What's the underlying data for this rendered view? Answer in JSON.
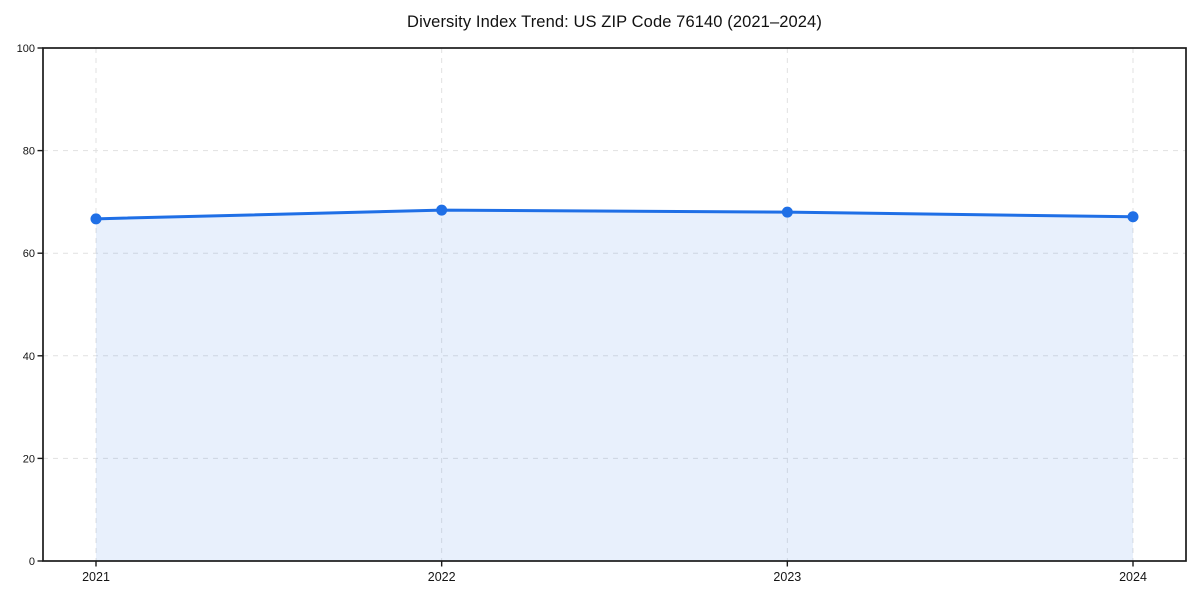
{
  "chart_data": {
    "type": "area",
    "title": "Diversity Index Trend: US ZIP Code 76140 (2021–2024)",
    "categories": [
      "2021",
      "2022",
      "2023",
      "2024"
    ],
    "series": [
      {
        "name": "Diversity Index",
        "values": [
          66.7,
          68.4,
          68.0,
          67.1
        ]
      }
    ],
    "xlabel": "",
    "ylabel": "",
    "ylim": [
      0,
      100
    ],
    "yticks": [
      0,
      20,
      40,
      60,
      80,
      100
    ],
    "grid": "dashed-both-axes",
    "legend_position": "none",
    "line_color": "#1f6fe6",
    "marker_color": "#1f6fe6",
    "fill_color": "#1f6fe6",
    "fill_opacity": 0.1,
    "spine_color": "#1a1a1a",
    "gridline_color": "#e1e1e1",
    "background_color": "#ffffff",
    "marker": "circle"
  }
}
